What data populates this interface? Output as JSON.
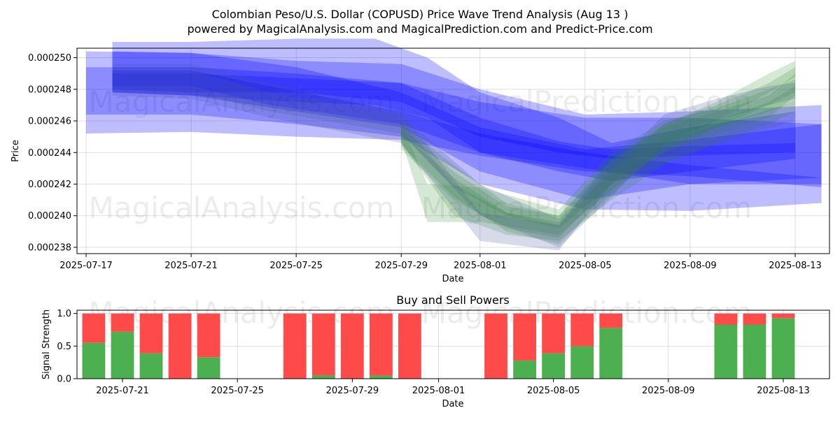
{
  "chart_data": [
    {
      "type": "area",
      "title": "Colombian Peso/U.S. Dollar (COPUSD) Price Wave Trend Analysis (Aug 13 )",
      "subtitle": "powered by MagicalAnalysis.com and MagicalPrediction.com and Predict-Price.com",
      "xlabel": "Date",
      "ylabel": "Price",
      "x_ticks": [
        "2025-07-17",
        "2025-07-21",
        "2025-07-25",
        "2025-07-29",
        "2025-08-01",
        "2025-08-05",
        "2025-08-09",
        "2025-08-13"
      ],
      "y_ticks": [
        "0.000238",
        "0.000240",
        "0.000242",
        "0.000244",
        "0.000246",
        "0.000248",
        "0.000250"
      ],
      "ylim": [
        0.0002376,
        0.0002506
      ],
      "watermarks": [
        "MagicalAnalysis.com",
        "MagicalPrediction.com",
        "MagicalAnalysis.com",
        "MagicalPrediction.com"
      ],
      "series": [
        {
          "name": "blue-wave-bands",
          "color": "#0000ff",
          "bands": [
            {
              "x": [
                "2025-07-17",
                "2025-07-21",
                "2025-07-25",
                "2025-07-29",
                "2025-08-01",
                "2025-08-05",
                "2025-08-09",
                "2025-08-14"
              ],
              "lower": [
                0.0002452,
                0.0002453,
                0.000245,
                0.0002448,
                0.0002438,
                0.0002428,
                0.0002425,
                0.0002418
              ],
              "upper": [
                0.0002494,
                0.0002494,
                0.000249,
                0.0002484,
                0.0002472,
                0.0002462,
                0.0002462,
                0.0002458
              ]
            },
            {
              "x": [
                "2025-07-17",
                "2025-07-21",
                "2025-07-25",
                "2025-07-29",
                "2025-08-01",
                "2025-08-05",
                "2025-08-09",
                "2025-08-14"
              ],
              "lower": [
                0.0002464,
                0.0002464,
                0.0002458,
                0.000245,
                0.000242,
                0.0002404,
                0.0002403,
                0.0002408
              ],
              "upper": [
                0.0002504,
                0.0002503,
                0.0002498,
                0.0002496,
                0.000248,
                0.0002464,
                0.0002466,
                0.000247
              ]
            },
            {
              "x": [
                "2025-07-18",
                "2025-07-21",
                "2025-07-25",
                "2025-07-29",
                "2025-08-01",
                "2025-08-05",
                "2025-08-09",
                "2025-08-14"
              ],
              "lower": [
                0.0002478,
                0.0002476,
                0.0002466,
                0.0002456,
                0.0002428,
                0.000241,
                0.000242,
                0.0002424
              ],
              "upper": [
                0.0002504,
                0.0002503,
                0.0002494,
                0.0002478,
                0.0002456,
                0.0002442,
                0.0002448,
                0.0002458
              ]
            },
            {
              "x": [
                "2025-07-18",
                "2025-07-21",
                "2025-07-24",
                "2025-07-29",
                "2025-08-01",
                "2025-08-05",
                "2025-08-09",
                "2025-08-14"
              ],
              "lower": [
                0.0002482,
                0.0002482,
                0.000247,
                0.0002458,
                0.000244,
                0.000243,
                0.000242,
                0.000242
              ],
              "upper": [
                0.0002492,
                0.0002492,
                0.0002482,
                0.0002466,
                0.0002452,
                0.000244,
                0.0002432,
                0.0002424
              ]
            },
            {
              "x": [
                "2025-07-18",
                "2025-07-21",
                "2025-07-25",
                "2025-07-29",
                "2025-08-01",
                "2025-08-04",
                "2025-08-06",
                "2025-08-09",
                "2025-08-13"
              ],
              "lower": [
                0.000248,
                0.0002478,
                0.0002478,
                0.0002472,
                0.000245,
                0.000244,
                0.0002436,
                0.0002438,
                0.000244
              ],
              "upper": [
                0.000249,
                0.000249,
                0.0002487,
                0.0002484,
                0.0002462,
                0.0002447,
                0.0002442,
                0.0002444,
                0.0002446
              ]
            },
            {
              "x": [
                "2025-07-18",
                "2025-07-21",
                "2025-07-25",
                "2025-07-28",
                "2025-07-30",
                "2025-08-01",
                "2025-08-04",
                "2025-08-06",
                "2025-08-09",
                "2025-08-13"
              ],
              "lower": [
                0.0002478,
                0.0002476,
                0.0002472,
                0.000247,
                0.0002462,
                0.000244,
                0.0002428,
                0.0002422,
                0.0002428,
                0.0002436
              ],
              "upper": [
                0.000251,
                0.000251,
                0.0002512,
                0.0002512,
                0.00025,
                0.0002478,
                0.0002462,
                0.0002446,
                0.0002456,
                0.0002466
              ]
            }
          ]
        },
        {
          "name": "green-wave-bands",
          "color": "#2e8b2e",
          "bands": [
            {
              "x": [
                "2025-07-29",
                "2025-07-31",
                "2025-08-02",
                "2025-08-04",
                "2025-08-06",
                "2025-08-08",
                "2025-08-10",
                "2025-08-12",
                "2025-08-13"
              ],
              "lower": [
                0.0002452,
                0.0002418,
                0.00024,
                0.0002392,
                0.000242,
                0.000244,
                0.0002452,
                0.0002462,
                0.0002476
              ],
              "upper": [
                0.0002458,
                0.0002432,
                0.0002408,
                0.00024,
                0.0002436,
                0.0002456,
                0.0002466,
                0.0002476,
                0.000249
              ]
            },
            {
              "x": [
                "2025-07-29",
                "2025-07-31",
                "2025-08-02",
                "2025-08-04",
                "2025-08-06",
                "2025-08-08",
                "2025-08-10",
                "2025-08-12",
                "2025-08-13"
              ],
              "lower": [
                0.0002446,
                0.00024,
                0.0002388,
                0.0002384,
                0.000241,
                0.0002432,
                0.0002446,
                0.0002458,
                0.0002466
              ],
              "upper": [
                0.000246,
                0.000242,
                0.0002402,
                0.0002396,
                0.0002428,
                0.000245,
                0.000246,
                0.0002472,
                0.0002482
              ]
            },
            {
              "x": [
                "2025-07-29",
                "2025-07-30",
                "2025-08-01",
                "2025-08-04",
                "2025-08-06",
                "2025-08-08",
                "2025-08-10",
                "2025-08-12",
                "2025-08-13"
              ],
              "lower": [
                0.0002448,
                0.0002396,
                0.0002396,
                0.0002388,
                0.0002416,
                0.000244,
                0.0002456,
                0.0002466,
                0.0002472
              ],
              "upper": [
                0.0002458,
                0.000242,
                0.0002418,
                0.0002404,
                0.000244,
                0.000246,
                0.0002468,
                0.000248,
                0.0002486
              ]
            },
            {
              "x": [
                "2025-07-29",
                "2025-07-31",
                "2025-08-02",
                "2025-08-04",
                "2025-08-06",
                "2025-08-08",
                "2025-08-10",
                "2025-08-12",
                "2025-08-13"
              ],
              "lower": [
                0.0002444,
                0.0002412,
                0.000239,
                0.0002382,
                0.0002414,
                0.0002444,
                0.000246,
                0.0002478,
                0.0002488
              ],
              "upper": [
                0.0002452,
                0.0002424,
                0.0002402,
                0.0002394,
                0.0002428,
                0.0002458,
                0.0002472,
                0.000249,
                0.0002498
              ]
            },
            {
              "x": [
                "2025-07-29",
                "2025-07-31",
                "2025-08-02",
                "2025-08-04",
                "2025-08-06",
                "2025-08-08",
                "2025-08-10",
                "2025-08-12",
                "2025-08-13"
              ],
              "lower": [
                0.0002442,
                0.000241,
                0.0002392,
                0.0002386,
                0.000242,
                0.0002446,
                0.0002456,
                0.000247,
                0.0002478
              ],
              "upper": [
                0.0002456,
                0.0002428,
                0.0002406,
                0.00024,
                0.0002434,
                0.0002458,
                0.000247,
                0.0002484,
                0.0002494
              ]
            }
          ]
        },
        {
          "name": "slate-wave-bands",
          "color": "#4a5a9a",
          "bands": [
            {
              "x": [
                "2025-07-18",
                "2025-07-21",
                "2025-07-24",
                "2025-07-29",
                "2025-08-01",
                "2025-08-04",
                "2025-08-06",
                "2025-08-08",
                "2025-08-10",
                "2025-08-12",
                "2025-08-13"
              ],
              "lower": [
                0.000248,
                0.0002478,
                0.0002466,
                0.0002452,
                0.00024,
                0.000238,
                0.0002412,
                0.0002446,
                0.000246,
                0.000247,
                0.0002474
              ],
              "upper": [
                0.0002492,
                0.0002492,
                0.0002478,
                0.0002464,
                0.000242,
                0.0002398,
                0.000243,
                0.0002464,
                0.0002474,
                0.0002482,
                0.0002484
              ]
            },
            {
              "x": [
                "2025-07-18",
                "2025-07-21",
                "2025-07-24",
                "2025-07-29",
                "2025-08-01",
                "2025-08-04",
                "2025-08-06",
                "2025-08-09",
                "2025-08-13"
              ],
              "lower": [
                0.0002476,
                0.0002474,
                0.0002462,
                0.0002446,
                0.0002384,
                0.0002378,
                0.000242,
                0.000244,
                0.000246
              ],
              "upper": [
                0.0002496,
                0.0002496,
                0.0002484,
                0.0002466,
                0.0002402,
                0.0002394,
                0.0002436,
                0.0002452,
                0.0002472
              ]
            }
          ]
        }
      ]
    },
    {
      "type": "bar",
      "title": "Buy and Sell Powers",
      "xlabel": "Date",
      "ylabel": "Signal Strength",
      "x_ticks": [
        "2025-07-21",
        "2025-07-25",
        "2025-07-29",
        "2025-08-01",
        "2025-08-05",
        "2025-08-09",
        "2025-08-13"
      ],
      "y_ticks": [
        "0.0",
        "0.5",
        "1.0"
      ],
      "ylim": [
        0,
        1.05
      ],
      "buy_color": "#4caf50",
      "sell_color": "#ff4a4a",
      "categories": [
        "2025-07-20",
        "2025-07-21",
        "2025-07-22",
        "2025-07-23",
        "2025-07-24",
        "2025-07-27",
        "2025-07-28",
        "2025-07-29",
        "2025-07-30",
        "2025-07-31",
        "2025-08-03",
        "2025-08-04",
        "2025-08-05",
        "2025-08-06",
        "2025-08-07",
        "2025-08-11",
        "2025-08-12",
        "2025-08-13"
      ],
      "buy": [
        0.55,
        0.72,
        0.39,
        0.0,
        0.33,
        0.0,
        0.05,
        0.0,
        0.05,
        0.0,
        0.0,
        0.28,
        0.39,
        0.5,
        0.78,
        0.83,
        0.83,
        0.93
      ],
      "sell": [
        0.45,
        0.28,
        0.61,
        1.0,
        0.67,
        1.0,
        0.95,
        1.0,
        0.95,
        1.0,
        1.0,
        0.72,
        0.61,
        0.5,
        0.22,
        0.17,
        0.17,
        0.07
      ],
      "watermarks": [
        "MagicalAnalysis.com",
        "MagicalPrediction.com"
      ]
    }
  ]
}
